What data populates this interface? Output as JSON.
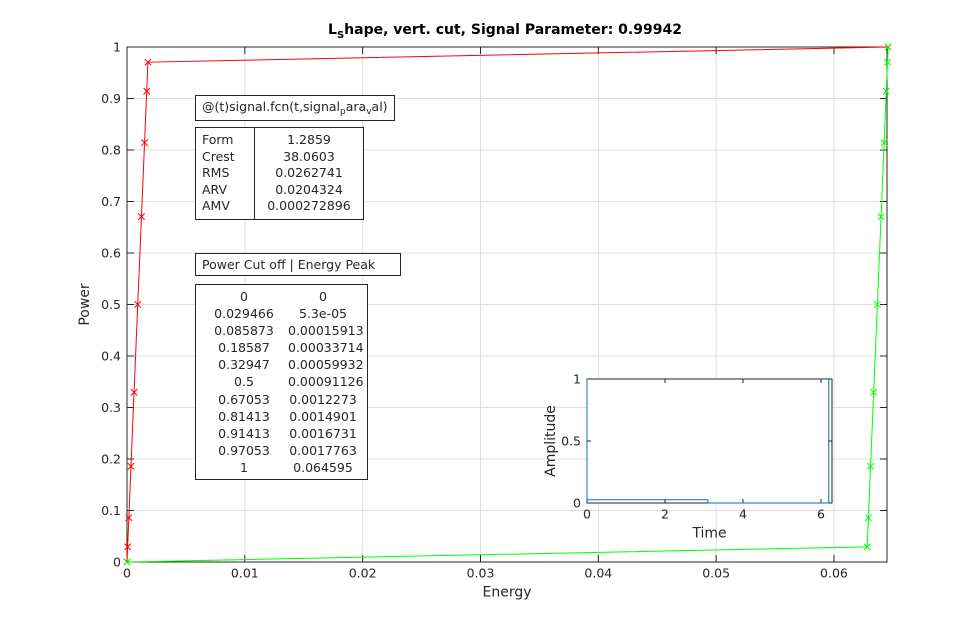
{
  "chart_data": [
    {
      "type": "line",
      "title_parts": [
        "L",
        "S",
        "hape, vert. cut, Signal Parameter: 0.99942"
      ],
      "xlabel": "Energy",
      "ylabel": "Power",
      "xlim": [
        0,
        0.0645
      ],
      "ylim": [
        0,
        1
      ],
      "xtick_labels": [
        "0",
        "0.01",
        "0.02",
        "0.03",
        "0.04",
        "0.05",
        "0.06"
      ],
      "xticks": [
        0,
        0.01,
        0.02,
        0.03,
        0.04,
        0.05,
        0.06
      ],
      "ytick_labels": [
        "0",
        "0.1",
        "0.2",
        "0.3",
        "0.4",
        "0.5",
        "0.6",
        "0.7",
        "0.8",
        "0.9",
        "1"
      ],
      "yticks": [
        0,
        0.1,
        0.2,
        0.3,
        0.4,
        0.5,
        0.6,
        0.7,
        0.8,
        0.9,
        1
      ],
      "grid": true,
      "series": [
        {
          "color": "#ff0000",
          "marker": "x",
          "x": [
            0,
            5.3e-05,
            0.00015913,
            0.00033714,
            0.00059932,
            0.00091126,
            0.0012273,
            0.0014901,
            0.0016731,
            0.0017763,
            0.064595
          ],
          "y": [
            0,
            0.029466,
            0.085873,
            0.18587,
            0.32947,
            0.5,
            0.67053,
            0.81413,
            0.91413,
            0.97053,
            1
          ]
        },
        {
          "color": "#00ff00",
          "marker": "x",
          "x": [
            0,
            0.062819,
            0.062925,
            0.063105,
            0.063367,
            0.063684,
            0.063996,
            0.064258,
            0.064436,
            0.064542,
            0.064595
          ],
          "y": [
            0,
            0.029466,
            0.085873,
            0.18587,
            0.32947,
            0.5,
            0.67053,
            0.81413,
            0.91413,
            0.97053,
            1
          ]
        }
      ]
    },
    {
      "type": "line",
      "xlabel": "Time",
      "ylabel": "Amplitude",
      "xlim": [
        0,
        6.2832
      ],
      "ylim": [
        0,
        1
      ],
      "xtick_labels": [
        "0",
        "2",
        "4",
        "6"
      ],
      "xticks": [
        0,
        2,
        4,
        6
      ],
      "ytick_labels": [
        "0",
        "0.5",
        "1"
      ],
      "yticks": [
        0,
        0.5,
        1
      ],
      "grid": false,
      "series": [
        {
          "color": "#0072bd",
          "x": [
            0,
            0,
            3.1,
            3.1,
            6.2,
            6.2
          ],
          "y": [
            1,
            0.026,
            0.026,
            0,
            0,
            1
          ]
        }
      ]
    }
  ],
  "annotations": {
    "function_label_parts": [
      "@(t)signal.fcn(t,signal",
      "p",
      "ara",
      "v",
      "al)"
    ],
    "stats_names": [
      "Form",
      "Crest",
      "RMS",
      "ARV",
      "AMV"
    ],
    "stats_values": [
      "1.2859",
      "38.0603",
      "0.0262741",
      "0.0204324",
      "0.000272896"
    ],
    "table_title": "Power Cut off | Energy Peak",
    "table_rows": [
      [
        "0",
        "0"
      ],
      [
        "0.029466",
        "5.3e-05"
      ],
      [
        "0.085873",
        "0.00015913"
      ],
      [
        "0.18587",
        "0.00033714"
      ],
      [
        "0.32947",
        "0.00059932"
      ],
      [
        "0.5",
        "0.00091126"
      ],
      [
        "0.67053",
        "0.0012273"
      ],
      [
        "0.81413",
        "0.0014901"
      ],
      [
        "0.91413",
        "0.0016731"
      ],
      [
        "0.97053",
        "0.0017763"
      ],
      [
        "1",
        "0.064595"
      ]
    ]
  }
}
